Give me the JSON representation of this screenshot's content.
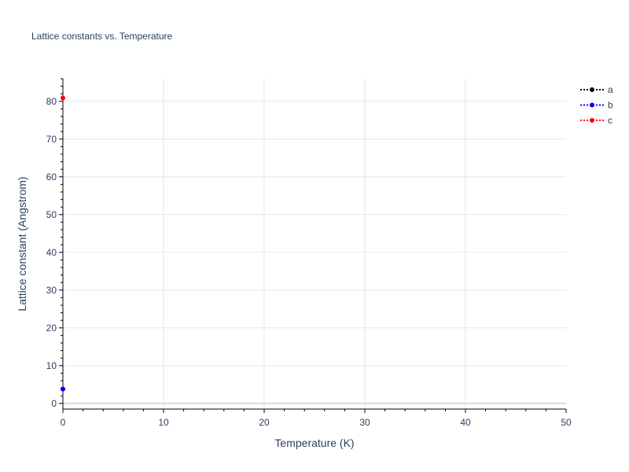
{
  "chart_data": {
    "type": "scatter",
    "title": "Lattice constants vs. Temperature",
    "xlabel": "Temperature (K)",
    "ylabel": "Lattice constant (Angstrom)",
    "xlim": [
      0,
      50
    ],
    "ylim": [
      -1.5,
      86
    ],
    "xticks": [
      0,
      10,
      20,
      30,
      40,
      50
    ],
    "yticks": [
      0,
      10,
      20,
      30,
      40,
      50,
      60,
      70,
      80
    ],
    "grid": true,
    "legend_position": "top-right",
    "series": [
      {
        "name": "a",
        "color": "#000000",
        "x": [
          0
        ],
        "y": [
          3.8
        ]
      },
      {
        "name": "b",
        "color": "#0000ff",
        "x": [
          0
        ],
        "y": [
          3.8
        ]
      },
      {
        "name": "c",
        "color": "#ff0000",
        "x": [
          0
        ],
        "y": [
          80.9
        ]
      }
    ]
  }
}
